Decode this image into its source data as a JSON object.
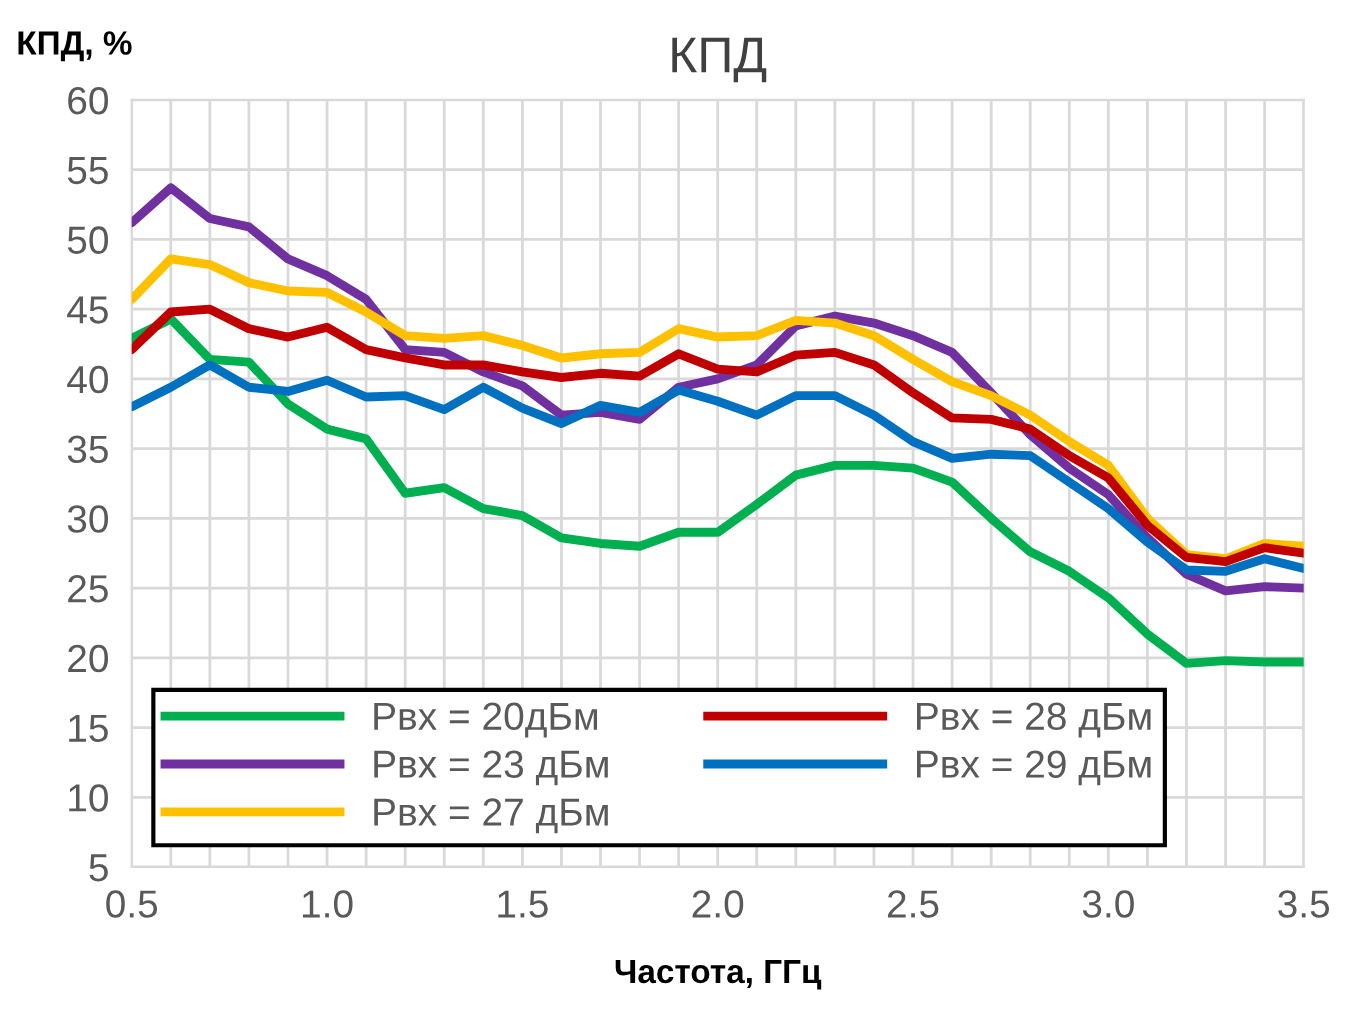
{
  "chart_data": {
    "type": "line",
    "title": "КПД",
    "xlabel": "Частота, ГГц",
    "ylabel": "КПД, %",
    "x": [
      0.5,
      0.6,
      0.7,
      0.8,
      0.9,
      1.0,
      1.1,
      1.2,
      1.3,
      1.4,
      1.5,
      1.6,
      1.7,
      1.8,
      1.9,
      2.0,
      2.1,
      2.2,
      2.3,
      2.4,
      2.5,
      2.6,
      2.7,
      2.8,
      2.9,
      3.0,
      3.1,
      3.2,
      3.3,
      3.4,
      3.5
    ],
    "series": [
      {
        "name": "Pвх = 20дБм",
        "color": "#00b050",
        "values": [
          42.9,
          44.3,
          41.4,
          41.2,
          38.2,
          36.4,
          35.7,
          31.8,
          32.2,
          30.7,
          30.2,
          28.6,
          28.2,
          28.0,
          29.0,
          29.0,
          31.0,
          33.1,
          33.8,
          33.8,
          33.6,
          32.6,
          30.0,
          27.6,
          26.2,
          24.3,
          21.7,
          19.6,
          19.8,
          19.7,
          19.7
        ]
      },
      {
        "name": "Pвх = 23 дБм",
        "color": "#7030a0",
        "values": [
          51.2,
          53.7,
          51.5,
          50.9,
          48.6,
          47.4,
          45.7,
          42.1,
          41.9,
          40.5,
          39.5,
          37.4,
          37.6,
          37.1,
          39.4,
          40.0,
          41.0,
          43.8,
          44.5,
          44.0,
          43.1,
          41.9,
          39.0,
          36.0,
          33.6,
          31.7,
          28.6,
          26.0,
          24.8,
          25.1,
          25.0
        ]
      },
      {
        "name": "Pвх = 27 дБм",
        "color": "#ffc000",
        "values": [
          45.7,
          48.6,
          48.2,
          46.9,
          46.3,
          46.2,
          44.8,
          43.1,
          42.9,
          43.1,
          42.4,
          41.5,
          41.8,
          41.9,
          43.6,
          43.0,
          43.1,
          44.2,
          44.0,
          43.1,
          41.4,
          39.8,
          38.8,
          37.4,
          35.5,
          33.8,
          30.0,
          27.4,
          27.1,
          28.2,
          28.0
        ]
      },
      {
        "name": "Pвх = 28 дБм",
        "color": "#c00000",
        "values": [
          42.1,
          44.8,
          45.0,
          43.6,
          43.0,
          43.7,
          42.1,
          41.5,
          41.0,
          41.0,
          40.5,
          40.1,
          40.4,
          40.2,
          41.8,
          40.7,
          40.5,
          41.7,
          41.9,
          41.0,
          39.0,
          37.2,
          37.1,
          36.4,
          34.5,
          32.9,
          29.5,
          27.2,
          26.9,
          27.9,
          27.5
        ]
      },
      {
        "name": "Pвх = 29 дБм",
        "color": "#0070c0",
        "values": [
          38.0,
          39.4,
          41.0,
          39.4,
          39.1,
          39.9,
          38.7,
          38.8,
          37.8,
          39.4,
          37.9,
          36.8,
          38.1,
          37.6,
          39.2,
          38.4,
          37.4,
          38.8,
          38.8,
          37.4,
          35.5,
          34.3,
          34.6,
          34.5,
          32.6,
          30.7,
          28.3,
          26.3,
          26.2,
          27.1,
          26.4
        ]
      }
    ],
    "xlim": [
      0.5,
      3.5
    ],
    "ylim": [
      5,
      60
    ],
    "xticks": [
      {
        "value": 0.5,
        "label": "0.5"
      },
      {
        "value": 0.6,
        "label": null
      },
      {
        "value": 0.7,
        "label": null
      },
      {
        "value": 0.8,
        "label": null
      },
      {
        "value": 0.9,
        "label": null
      },
      {
        "value": 1.0,
        "label": "1.0"
      },
      {
        "value": 1.1,
        "label": null
      },
      {
        "value": 1.2,
        "label": null
      },
      {
        "value": 1.3,
        "label": null
      },
      {
        "value": 1.4,
        "label": null
      },
      {
        "value": 1.5,
        "label": "1.5"
      },
      {
        "value": 1.6,
        "label": null
      },
      {
        "value": 1.7,
        "label": null
      },
      {
        "value": 1.8,
        "label": null
      },
      {
        "value": 1.9,
        "label": null
      },
      {
        "value": 2.0,
        "label": "2.0"
      },
      {
        "value": 2.1,
        "label": null
      },
      {
        "value": 2.2,
        "label": null
      },
      {
        "value": 2.3,
        "label": null
      },
      {
        "value": 2.4,
        "label": null
      },
      {
        "value": 2.5,
        "label": "2.5"
      },
      {
        "value": 2.6,
        "label": null
      },
      {
        "value": 2.7,
        "label": null
      },
      {
        "value": 2.8,
        "label": null
      },
      {
        "value": 2.9,
        "label": null
      },
      {
        "value": 3.0,
        "label": "3.0"
      },
      {
        "value": 3.1,
        "label": null
      },
      {
        "value": 3.2,
        "label": null
      },
      {
        "value": 3.3,
        "label": null
      },
      {
        "value": 3.4,
        "label": null
      },
      {
        "value": 3.5,
        "label": "3.5"
      }
    ],
    "yticks": [
      5,
      10,
      15,
      20,
      25,
      30,
      35,
      40,
      45,
      50,
      55,
      60
    ],
    "grid": true,
    "legend": "bottom",
    "marker": "none",
    "line_style": "solid"
  }
}
